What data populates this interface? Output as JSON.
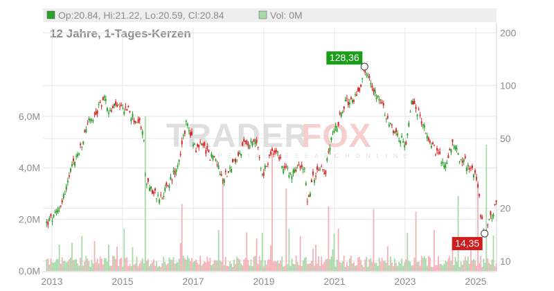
{
  "legend": {
    "ohlc_text": "Op:20.84, Hi:21.22, Lo:20.59, Cl:20.84",
    "vol_text": "Vol: 0M"
  },
  "subtitle": "12 Jahre, 1-Tages-Kerzen",
  "watermark": {
    "main_a": "TRADER",
    "main_b": "FOX",
    "sub": "S P E C I A L   R E S E A R C H   O N L I N E"
  },
  "colors": {
    "up": "#2ca02c",
    "down": "#d62728",
    "up_vol": "#a8d8a8",
    "down_vol": "#f4b0b8",
    "grid": "#e6e6e6",
    "legend_bg": "#eeeeee"
  },
  "chart_data": {
    "type": "candlestick",
    "y_scale": "log",
    "price_ticks": [
      "200",
      "100",
      "50",
      "20",
      "10"
    ],
    "volume_ticks": [
      "6,0M",
      "4,0M",
      "2,0M",
      "0,0M"
    ],
    "x_ticks": [
      "2013",
      "2015",
      "2017",
      "2019",
      "2021",
      "2023",
      "2025"
    ],
    "ylim": [
      8.7,
      270
    ],
    "volume_lim": [
      0,
      7000000
    ],
    "price_path": [
      [
        2012.85,
        16.5
      ],
      [
        2013.1,
        18.0
      ],
      [
        2013.35,
        24.0
      ],
      [
        2013.6,
        36.0
      ],
      [
        2013.85,
        45.0
      ],
      [
        2014.0,
        62.0
      ],
      [
        2014.2,
        65.0
      ],
      [
        2014.35,
        78.0
      ],
      [
        2014.5,
        85.0
      ],
      [
        2014.65,
        70.0
      ],
      [
        2014.8,
        78.0
      ],
      [
        2014.95,
        72.0
      ],
      [
        2015.1,
        76.0
      ],
      [
        2015.3,
        65.0
      ],
      [
        2015.5,
        60.0
      ],
      [
        2015.6,
        52.0
      ],
      [
        2015.65,
        28.0
      ],
      [
        2015.85,
        25.0
      ],
      [
        2016.0,
        23.0
      ],
      [
        2016.2,
        25.0
      ],
      [
        2016.4,
        30.0
      ],
      [
        2016.6,
        38.0
      ],
      [
        2016.8,
        62.0
      ],
      [
        2016.95,
        52.0
      ],
      [
        2017.1,
        43.0
      ],
      [
        2017.25,
        48.0
      ],
      [
        2017.45,
        40.0
      ],
      [
        2017.65,
        38.0
      ],
      [
        2017.85,
        30.0
      ],
      [
        2018.0,
        33.0
      ],
      [
        2018.2,
        37.0
      ],
      [
        2018.45,
        46.0
      ],
      [
        2018.7,
        50.0
      ],
      [
        2018.85,
        45.0
      ],
      [
        2018.95,
        30.0
      ],
      [
        2019.1,
        36.0
      ],
      [
        2019.25,
        44.0
      ],
      [
        2019.4,
        40.0
      ],
      [
        2019.6,
        33.0
      ],
      [
        2019.8,
        32.0
      ],
      [
        2020.0,
        34.0
      ],
      [
        2020.15,
        35.0
      ],
      [
        2020.25,
        21.0
      ],
      [
        2020.35,
        28.0
      ],
      [
        2020.55,
        35.0
      ],
      [
        2020.75,
        33.0
      ],
      [
        2020.9,
        48.0
      ],
      [
        2021.1,
        62.0
      ],
      [
        2021.3,
        80.0
      ],
      [
        2021.5,
        82.0
      ],
      [
        2021.7,
        95.0
      ],
      [
        2021.85,
        125.0
      ],
      [
        2021.95,
        112.0
      ],
      [
        2022.15,
        92.0
      ],
      [
        2022.3,
        85.0
      ],
      [
        2022.45,
        65.0
      ],
      [
        2022.65,
        58.0
      ],
      [
        2022.85,
        50.0
      ],
      [
        2023.05,
        48.0
      ],
      [
        2023.2,
        82.0
      ],
      [
        2023.4,
        68.0
      ],
      [
        2023.6,
        55.0
      ],
      [
        2023.8,
        45.0
      ],
      [
        2023.95,
        40.0
      ],
      [
        2024.1,
        34.0
      ],
      [
        2024.25,
        42.0
      ],
      [
        2024.4,
        48.0
      ],
      [
        2024.55,
        38.0
      ],
      [
        2024.75,
        36.0
      ],
      [
        2024.95,
        32.0
      ],
      [
        2025.05,
        28.0
      ],
      [
        2025.15,
        18.0
      ],
      [
        2025.25,
        14.35
      ],
      [
        2025.35,
        16.5
      ],
      [
        2025.5,
        19.0
      ],
      [
        2025.58,
        20.84
      ]
    ],
    "high_marker": {
      "x": 2021.85,
      "value": 128.36,
      "label": "128,36"
    },
    "low_marker": {
      "x": 2025.25,
      "value": 14.35,
      "label": "14,35"
    },
    "last": {
      "open": 20.84,
      "high": 21.22,
      "low": 20.59,
      "close": 20.84,
      "volume": 0
    }
  }
}
